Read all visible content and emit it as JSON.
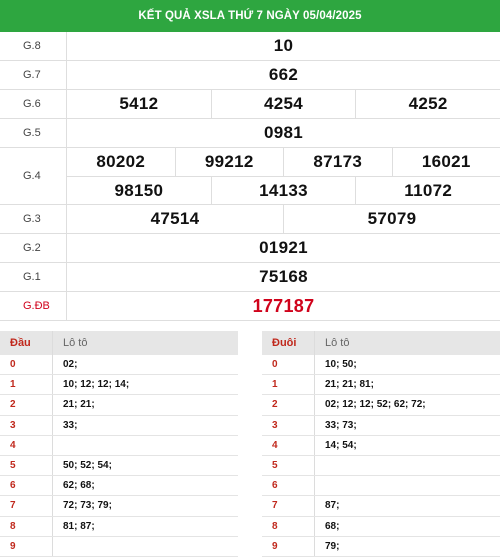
{
  "header": {
    "title": "KẾT QUẢ XSLA THỨ 7 NGÀY 05/04/2025"
  },
  "prizes": [
    {
      "label": "G.8",
      "lines": [
        [
          "10"
        ]
      ]
    },
    {
      "label": "G.7",
      "lines": [
        [
          "662"
        ]
      ]
    },
    {
      "label": "G.6",
      "lines": [
        [
          "5412",
          "4254",
          "4252"
        ]
      ]
    },
    {
      "label": "G.5",
      "lines": [
        [
          "0981"
        ]
      ]
    },
    {
      "label": "G.4",
      "lines": [
        [
          "80202",
          "99212",
          "87173",
          "16021"
        ],
        [
          "98150",
          "14133",
          "11072"
        ]
      ]
    },
    {
      "label": "G.3",
      "lines": [
        [
          "47514",
          "57079"
        ]
      ]
    },
    {
      "label": "G.2",
      "lines": [
        [
          "01921"
        ]
      ]
    },
    {
      "label": "G.1",
      "lines": [
        [
          "75168"
        ]
      ]
    },
    {
      "label": "G.ĐB",
      "lines": [
        [
          "177187"
        ]
      ],
      "special": true
    }
  ],
  "dau_table": {
    "col1": "Đầu",
    "col2": "Lô tô",
    "rows": [
      {
        "k": "0",
        "v": "02;"
      },
      {
        "k": "1",
        "v": "10; 12; 12; 14;"
      },
      {
        "k": "2",
        "v": "21; 21;"
      },
      {
        "k": "3",
        "v": "33;"
      },
      {
        "k": "4",
        "v": ""
      },
      {
        "k": "5",
        "v": "50; 52; 54;"
      },
      {
        "k": "6",
        "v": "62; 68;"
      },
      {
        "k": "7",
        "v": "72; 73; 79;"
      },
      {
        "k": "8",
        "v": "81; 87;"
      },
      {
        "k": "9",
        "v": ""
      }
    ]
  },
  "duoi_table": {
    "col1": "Đuôi",
    "col2": "Lô tô",
    "rows": [
      {
        "k": "0",
        "v": "10; 50;"
      },
      {
        "k": "1",
        "v": "21; 21; 81;"
      },
      {
        "k": "2",
        "v": "02; 12; 12; 52; 62; 72;"
      },
      {
        "k": "3",
        "v": "33; 73;"
      },
      {
        "k": "4",
        "v": "14; 54;"
      },
      {
        "k": "5",
        "v": ""
      },
      {
        "k": "6",
        "v": ""
      },
      {
        "k": "7",
        "v": "87;"
      },
      {
        "k": "8",
        "v": "68;"
      },
      {
        "k": "9",
        "v": "79;"
      }
    ]
  },
  "colors": {
    "header_bg": "#2ea640",
    "special": "#d0021b",
    "loto_key": "#c0281c"
  }
}
